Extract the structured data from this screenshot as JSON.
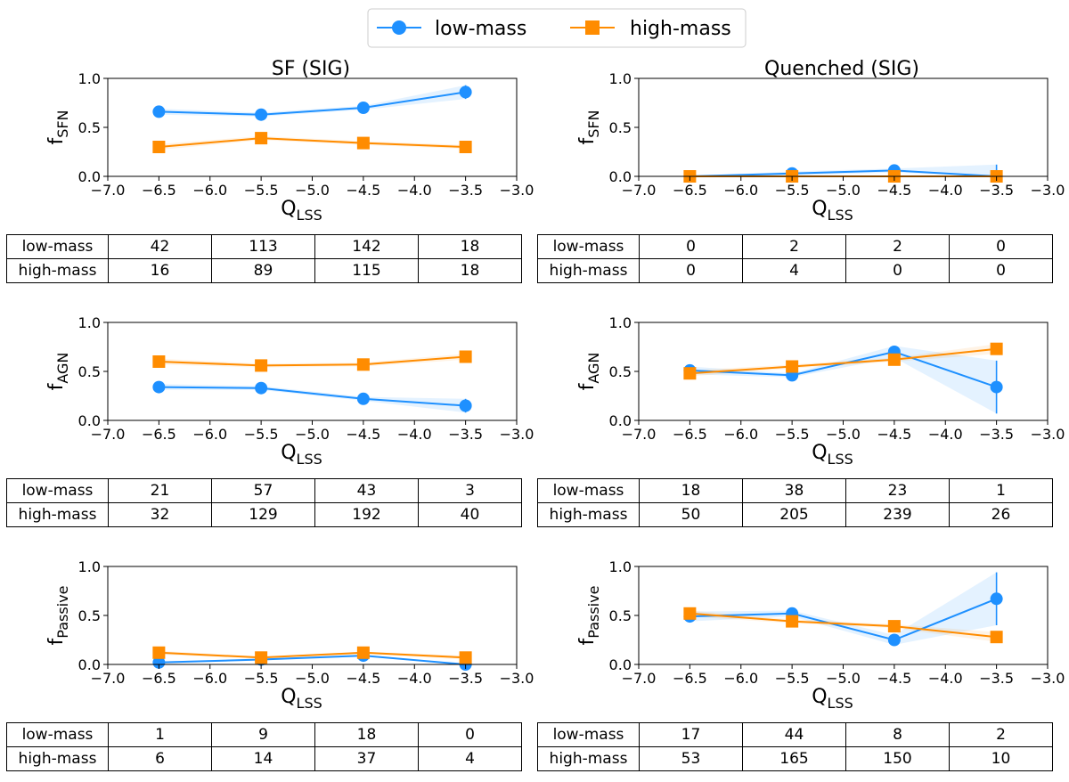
{
  "legend": {
    "series": [
      {
        "name": "low-mass",
        "color": "#1e90ff",
        "marker": "circle"
      },
      {
        "name": "high-mass",
        "color": "#ff8c00",
        "marker": "square"
      }
    ]
  },
  "columns": [
    {
      "title": "SF (SIG)"
    },
    {
      "title": "Quenched (SIG)"
    }
  ],
  "chart_data": [
    {
      "type": "line",
      "column": "SF (SIG)",
      "title": "SF (SIG)",
      "ylabel_main": "f",
      "ylabel_sub": "SFN",
      "xlabel_main": "Q",
      "xlabel_sub": "LSS",
      "xlim": [
        -7.0,
        -3.0
      ],
      "ylim": [
        0.0,
        1.0
      ],
      "xticks": [
        "−7.0",
        "−6.5",
        "−6.0",
        "−5.5",
        "−5.0",
        "−4.5",
        "−4.0",
        "−3.5",
        "−3.0"
      ],
      "yticks": [
        "0.0",
        "0.5",
        "1.0"
      ],
      "x": [
        -6.5,
        -5.5,
        -4.5,
        -3.5
      ],
      "series": [
        {
          "name": "low-mass",
          "values": [
            0.66,
            0.63,
            0.7,
            0.86
          ],
          "err": [
            0.03,
            0.02,
            0.02,
            0.07
          ]
        },
        {
          "name": "high-mass",
          "values": [
            0.3,
            0.39,
            0.34,
            0.3
          ],
          "err": [
            0.03,
            0.02,
            0.02,
            0.02
          ]
        }
      ],
      "table": {
        "rows": [
          {
            "label": "low-mass",
            "values": [
              "42",
              "113",
              "142",
              "18"
            ]
          },
          {
            "label": "high-mass",
            "values": [
              "16",
              "89",
              "115",
              "18"
            ]
          }
        ]
      }
    },
    {
      "type": "line",
      "column": "Quenched (SIG)",
      "title": "Quenched (SIG)",
      "ylabel_main": "f",
      "ylabel_sub": "SFN",
      "xlabel_main": "Q",
      "xlabel_sub": "LSS",
      "xlim": [
        -7.0,
        -3.0
      ],
      "ylim": [
        0.0,
        1.0
      ],
      "xticks": [
        "−7.0",
        "−6.5",
        "−6.0",
        "−5.5",
        "−5.0",
        "−4.5",
        "−4.0",
        "−3.5",
        "−3.0"
      ],
      "yticks": [
        "0.0",
        "0.5",
        "1.0"
      ],
      "x": [
        -6.5,
        -5.5,
        -4.5,
        -3.5
      ],
      "series": [
        {
          "name": "low-mass",
          "values": [
            0.0,
            0.03,
            0.06,
            0.0
          ],
          "err": [
            0.0,
            0.02,
            0.02,
            0.12
          ]
        },
        {
          "name": "high-mass",
          "values": [
            0.0,
            0.0,
            0.0,
            0.0
          ],
          "err": [
            0.0,
            0.0,
            0.0,
            0.0
          ]
        }
      ],
      "table": {
        "rows": [
          {
            "label": "low-mass",
            "values": [
              "0",
              "2",
              "2",
              "0"
            ]
          },
          {
            "label": "high-mass",
            "values": [
              "0",
              "4",
              "0",
              "0"
            ]
          }
        ]
      }
    },
    {
      "type": "line",
      "column": "SF (SIG)",
      "ylabel_main": "f",
      "ylabel_sub": "AGN",
      "xlabel_main": "Q",
      "xlabel_sub": "LSS",
      "xlim": [
        -7.0,
        -3.0
      ],
      "ylim": [
        0.0,
        1.0
      ],
      "xticks": [
        "−7.0",
        "−6.5",
        "−6.0",
        "−5.5",
        "−5.0",
        "−4.5",
        "−4.0",
        "−3.5",
        "−3.0"
      ],
      "yticks": [
        "0.0",
        "0.5",
        "1.0"
      ],
      "x": [
        -6.5,
        -5.5,
        -4.5,
        -3.5
      ],
      "series": [
        {
          "name": "low-mass",
          "values": [
            0.34,
            0.33,
            0.22,
            0.15
          ],
          "err": [
            0.03,
            0.02,
            0.02,
            0.07
          ]
        },
        {
          "name": "high-mass",
          "values": [
            0.6,
            0.56,
            0.57,
            0.65
          ],
          "err": [
            0.03,
            0.02,
            0.02,
            0.03
          ]
        }
      ],
      "table": {
        "rows": [
          {
            "label": "low-mass",
            "values": [
              "21",
              "57",
              "43",
              "3"
            ]
          },
          {
            "label": "high-mass",
            "values": [
              "32",
              "129",
              "192",
              "40"
            ]
          }
        ]
      }
    },
    {
      "type": "line",
      "column": "Quenched (SIG)",
      "ylabel_main": "f",
      "ylabel_sub": "AGN",
      "xlabel_main": "Q",
      "xlabel_sub": "LSS",
      "xlim": [
        -7.0,
        -3.0
      ],
      "ylim": [
        0.0,
        1.0
      ],
      "xticks": [
        "−7.0",
        "−6.5",
        "−6.0",
        "−5.5",
        "−5.0",
        "−4.5",
        "−4.0",
        "−3.5",
        "−3.0"
      ],
      "yticks": [
        "0.0",
        "0.5",
        "1.0"
      ],
      "x": [
        -6.5,
        -5.5,
        -4.5,
        -3.5
      ],
      "series": [
        {
          "name": "low-mass",
          "values": [
            0.51,
            0.46,
            0.7,
            0.34
          ],
          "err": [
            0.04,
            0.02,
            0.06,
            0.27
          ]
        },
        {
          "name": "high-mass",
          "values": [
            0.48,
            0.55,
            0.62,
            0.73
          ],
          "err": [
            0.03,
            0.02,
            0.02,
            0.05
          ]
        }
      ],
      "table": {
        "rows": [
          {
            "label": "low-mass",
            "values": [
              "18",
              "38",
              "23",
              "1"
            ]
          },
          {
            "label": "high-mass",
            "values": [
              "50",
              "205",
              "239",
              "26"
            ]
          }
        ]
      }
    },
    {
      "type": "line",
      "column": "SF (SIG)",
      "ylabel_main": "f",
      "ylabel_sub": "Passive",
      "xlabel_main": "Q",
      "xlabel_sub": "LSS",
      "xlim": [
        -7.0,
        -3.0
      ],
      "ylim": [
        0.0,
        1.0
      ],
      "xticks": [
        "−7.0",
        "−6.5",
        "−6.0",
        "−5.5",
        "−5.0",
        "−4.5",
        "−4.0",
        "−3.5",
        "−3.0"
      ],
      "yticks": [
        "0.0",
        "0.5",
        "1.0"
      ],
      "x": [
        -6.5,
        -5.5,
        -4.5,
        -3.5
      ],
      "series": [
        {
          "name": "low-mass",
          "values": [
            0.02,
            0.05,
            0.09,
            0.0
          ],
          "err": [
            0.01,
            0.01,
            0.01,
            0.0
          ]
        },
        {
          "name": "high-mass",
          "values": [
            0.12,
            0.07,
            0.12,
            0.07
          ],
          "err": [
            0.02,
            0.01,
            0.01,
            0.02
          ]
        }
      ],
      "table": {
        "rows": [
          {
            "label": "low-mass",
            "values": [
              "1",
              "9",
              "18",
              "0"
            ]
          },
          {
            "label": "high-mass",
            "values": [
              "6",
              "14",
              "37",
              "4"
            ]
          }
        ]
      }
    },
    {
      "type": "line",
      "column": "Quenched (SIG)",
      "ylabel_main": "f",
      "ylabel_sub": "Passive",
      "xlabel_main": "Q",
      "xlabel_sub": "LSS",
      "xlim": [
        -7.0,
        -3.0
      ],
      "ylim": [
        0.0,
        1.0
      ],
      "xticks": [
        "−7.0",
        "−6.5",
        "−6.0",
        "−5.5",
        "−5.0",
        "−4.5",
        "−4.0",
        "−3.5",
        "−3.0"
      ],
      "yticks": [
        "0.0",
        "0.5",
        "1.0"
      ],
      "x": [
        -6.5,
        -5.5,
        -4.5,
        -3.5
      ],
      "series": [
        {
          "name": "low-mass",
          "values": [
            0.49,
            0.52,
            0.25,
            0.67
          ],
          "err": [
            0.05,
            0.03,
            0.05,
            0.27
          ]
        },
        {
          "name": "high-mass",
          "values": [
            0.52,
            0.44,
            0.39,
            0.28
          ],
          "err": [
            0.03,
            0.02,
            0.02,
            0.05
          ]
        }
      ],
      "table": {
        "rows": [
          {
            "label": "low-mass",
            "values": [
              "17",
              "44",
              "8",
              "2"
            ]
          },
          {
            "label": "high-mass",
            "values": [
              "53",
              "165",
              "150",
              "10"
            ]
          }
        ]
      }
    }
  ]
}
